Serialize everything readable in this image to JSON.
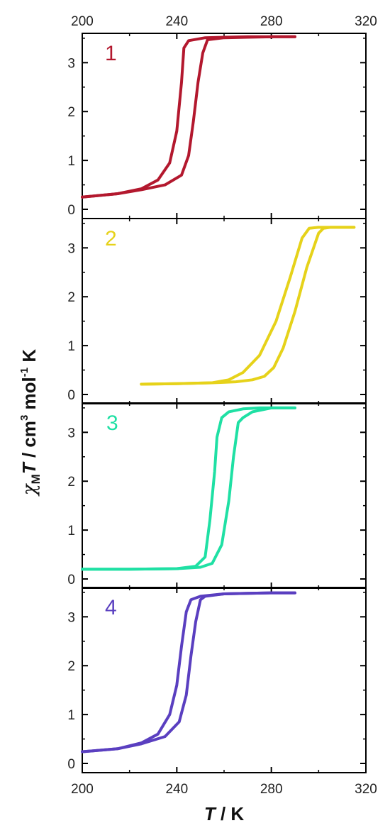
{
  "chart_data": {
    "type": "line",
    "layout": "stacked-panels",
    "xlabel_parts": {
      "var": "T",
      "rest": " / K"
    },
    "ylabel_parts": {
      "chi": "χ",
      "sub": "M",
      "var": "T",
      "mid": " / cm",
      "sup1": "3",
      "mol": " mol",
      "sup2": "-1",
      "end": " K"
    },
    "xlim": [
      200,
      320
    ],
    "x_ticks": [
      200,
      240,
      280,
      320
    ],
    "x_tick_labels": [
      "200",
      "240",
      "280",
      "320"
    ],
    "ylim": [
      0,
      3.6
    ],
    "y_ticks": [
      0,
      1,
      2,
      3
    ],
    "y_tick_labels": [
      "0",
      "1",
      "2",
      "3"
    ],
    "panels": [
      {
        "label": "1",
        "color": "#b3182e",
        "series": [
          {
            "x": [
              200,
              215,
              225,
              232,
              237,
              240,
              242,
              243,
              245,
              252,
              260,
              270,
              280,
              290
            ],
            "y": [
              0.25,
              0.32,
              0.42,
              0.6,
              0.95,
              1.6,
              2.6,
              3.3,
              3.45,
              3.51,
              3.52,
              3.53,
              3.53,
              3.53
            ]
          },
          {
            "x": [
              200,
              215,
              225,
              235,
              242,
              245,
              247,
              249,
              251,
              253,
              260,
              270,
              280,
              290
            ],
            "y": [
              0.25,
              0.32,
              0.4,
              0.5,
              0.7,
              1.1,
              1.8,
              2.6,
              3.2,
              3.47,
              3.51,
              3.52,
              3.53,
              3.53
            ]
          }
        ]
      },
      {
        "label": "2",
        "color": "#e6d21a",
        "series": [
          {
            "x": [
              225,
              240,
              255,
              262,
              268,
              275,
              282,
              288,
              293,
              296,
              300,
              310,
              315
            ],
            "y": [
              0.21,
              0.22,
              0.24,
              0.3,
              0.45,
              0.8,
              1.5,
              2.4,
              3.2,
              3.4,
              3.42,
              3.42,
              3.42
            ]
          },
          {
            "x": [
              225,
              240,
              255,
              265,
              272,
              277,
              281,
              285,
              290,
              295,
              300,
              302,
              305,
              315
            ],
            "y": [
              0.21,
              0.22,
              0.24,
              0.26,
              0.3,
              0.37,
              0.55,
              0.95,
              1.7,
              2.6,
              3.3,
              3.4,
              3.42,
              3.42
            ]
          }
        ]
      },
      {
        "label": "3",
        "color": "#1fe0a4",
        "series": [
          {
            "x": [
              200,
              220,
              240,
              248,
              252,
              254,
              256,
              257,
              259,
              262,
              268,
              275,
              285,
              290
            ],
            "y": [
              0.2,
              0.2,
              0.21,
              0.26,
              0.45,
              1.2,
              2.2,
              2.9,
              3.3,
              3.42,
              3.48,
              3.5,
              3.5,
              3.5
            ]
          },
          {
            "x": [
              200,
              220,
              240,
              250,
              255,
              259,
              262,
              264,
              266,
              268,
              272,
              280,
              290
            ],
            "y": [
              0.2,
              0.2,
              0.21,
              0.24,
              0.32,
              0.7,
              1.6,
              2.5,
              3.2,
              3.3,
              3.42,
              3.5,
              3.5
            ]
          }
        ]
      },
      {
        "label": "4",
        "color": "#5a3fc0",
        "series": [
          {
            "x": [
              200,
              215,
              225,
              232,
              237,
              240,
              242,
              244,
              246,
              250,
              260,
              270,
              280,
              290
            ],
            "y": [
              0.24,
              0.3,
              0.42,
              0.6,
              1.0,
              1.6,
              2.4,
              3.1,
              3.35,
              3.42,
              3.47,
              3.48,
              3.49,
              3.49
            ]
          },
          {
            "x": [
              200,
              215,
              225,
              235,
              241,
              244,
              246,
              248,
              250,
              252,
              260,
              270,
              280,
              290
            ],
            "y": [
              0.24,
              0.3,
              0.4,
              0.55,
              0.85,
              1.4,
              2.2,
              2.9,
              3.35,
              3.42,
              3.47,
              3.48,
              3.49,
              3.49
            ]
          }
        ]
      }
    ]
  }
}
